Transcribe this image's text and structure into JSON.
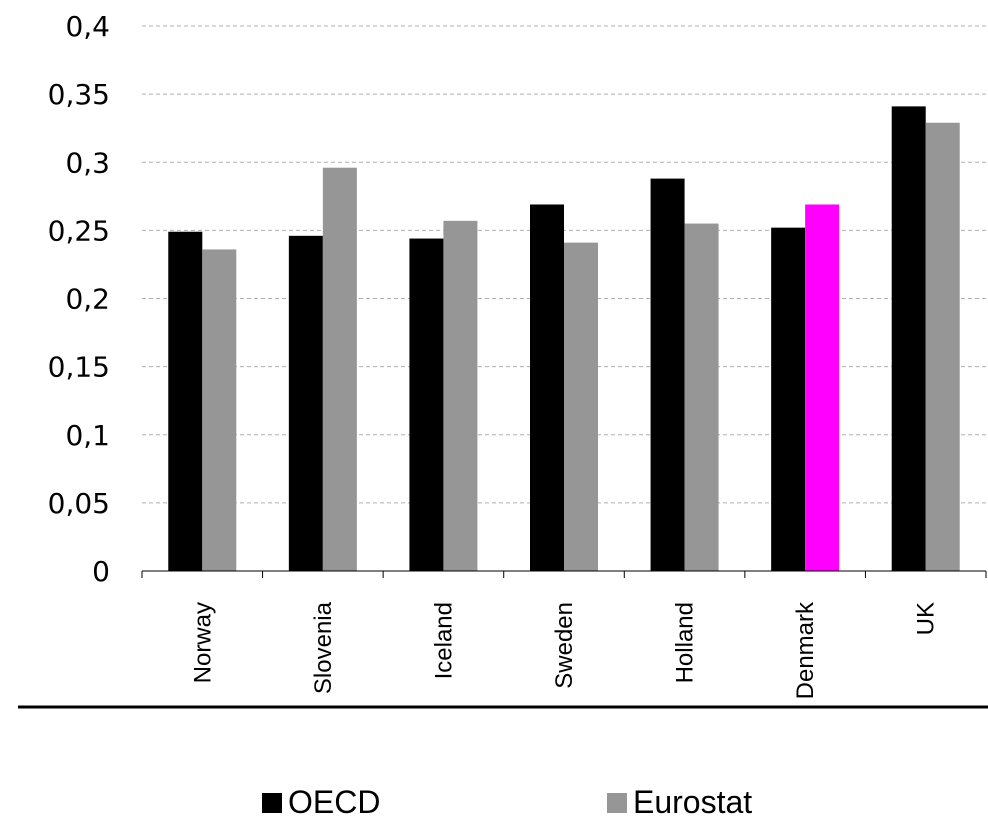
{
  "chart_data": {
    "type": "bar",
    "categories": [
      "Norway",
      "Slovenia",
      "Iceland",
      "Sweden",
      "Holland",
      "Denmark",
      "UK"
    ],
    "series": [
      {
        "name": "OECD",
        "color": "#000000",
        "values": [
          0.249,
          0.246,
          0.244,
          0.269,
          0.288,
          0.252,
          0.341
        ]
      },
      {
        "name": "Eurostat",
        "color": "#969696",
        "highlight": {
          "category": "Denmark",
          "color": "#ff00ff"
        },
        "values": [
          0.236,
          0.296,
          0.257,
          0.241,
          0.255,
          0.269,
          0.329
        ]
      }
    ],
    "yticks": [
      "0",
      "0,05",
      "0,1",
      "0,15",
      "0,2",
      "0,25",
      "0,3",
      "0,35",
      "0,4"
    ],
    "ylim": [
      0,
      0.4
    ],
    "grid": true,
    "legend_position": "bottom"
  }
}
